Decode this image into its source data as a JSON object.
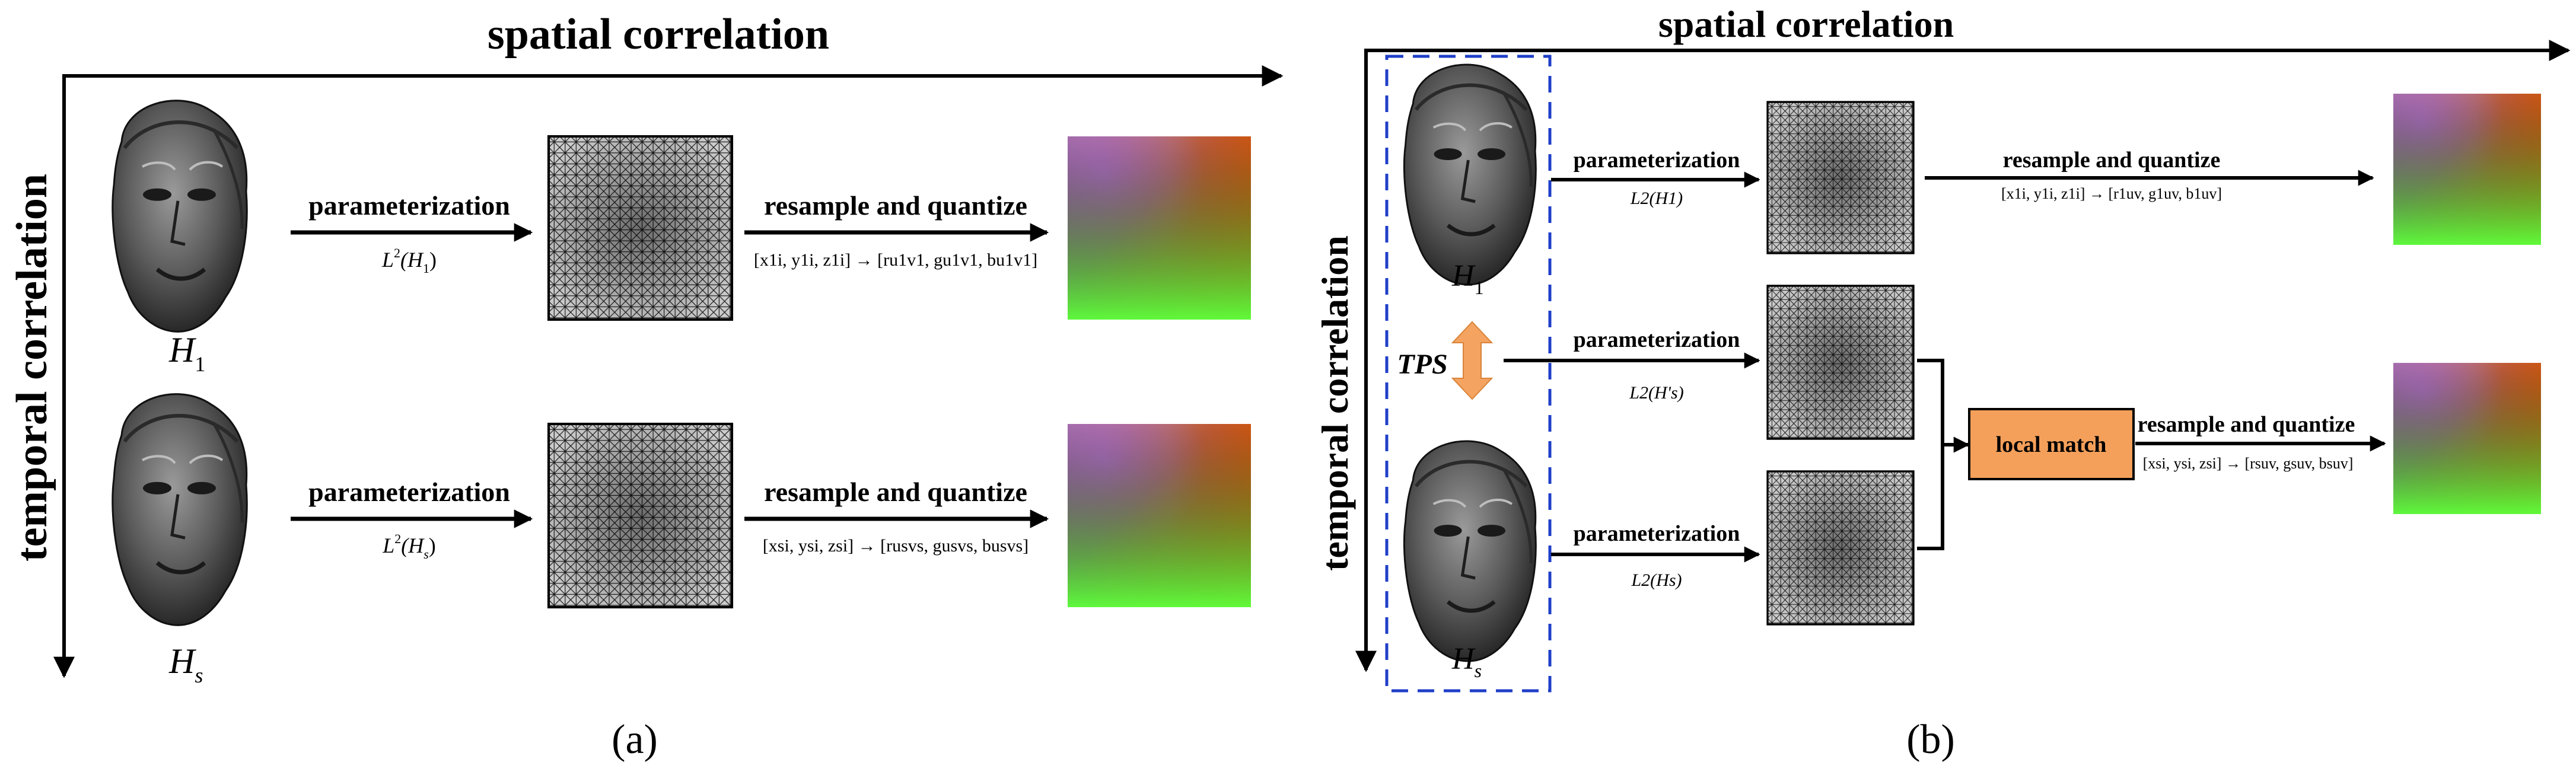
{
  "panel_a": {
    "spatial_label": "spatial correlation",
    "temporal_label": "temporal correlation",
    "caption": "(a)",
    "rows": [
      {
        "face_name": "H",
        "face_sub": "1",
        "param_label": "parameterization",
        "param_formula_base": "L",
        "param_formula_sup": "2",
        "param_formula_arg": "(H",
        "param_formula_arg_sub": "1",
        "param_formula_close": ")",
        "resample_label": "resample and quantize",
        "resample_formula": "[x1i, y1i, z1i] → [ru1v1, gu1v1, bu1v1]"
      },
      {
        "face_name": "H",
        "face_sub": "s",
        "param_label": "parameterization",
        "param_formula_base": "L",
        "param_formula_sup": "2",
        "param_formula_arg": "(H",
        "param_formula_arg_sub": "s",
        "param_formula_close": ")",
        "resample_label": "resample and quantize",
        "resample_formula": "[xsi, ysi, zsi] → [rusvs, gusvs, busvs]"
      }
    ]
  },
  "panel_b": {
    "spatial_label": "spatial correlation",
    "temporal_label": "temporal correlation",
    "caption": "(b)",
    "tps_label": "TPS",
    "local_match_label": "local match",
    "face_top": {
      "name": "H",
      "sub": "1"
    },
    "face_bottom": {
      "name": "H",
      "sub": "s"
    },
    "param_top": {
      "label": "parameterization",
      "formula": "L2(H1)"
    },
    "param_mid": {
      "label": "parameterization",
      "formula": "L2(H's)"
    },
    "param_bot": {
      "label": "parameterization",
      "formula": "L2(Hs)"
    },
    "resample_top": {
      "label": "resample and quantize",
      "formula": "[x1i, y1i, z1i] → [r1uv, g1uv, b1uv]"
    },
    "resample_bot": {
      "label": "resample and quantize",
      "formula": "[xsi, ysi, zsi] → [rsuv, gsuv, bsuv]"
    }
  },
  "colors": {
    "arrow": "#000000",
    "tps_arrow": "#f4a460",
    "local_match_fill": "#f5a05a",
    "dashed_box": "#1f3fc8"
  }
}
